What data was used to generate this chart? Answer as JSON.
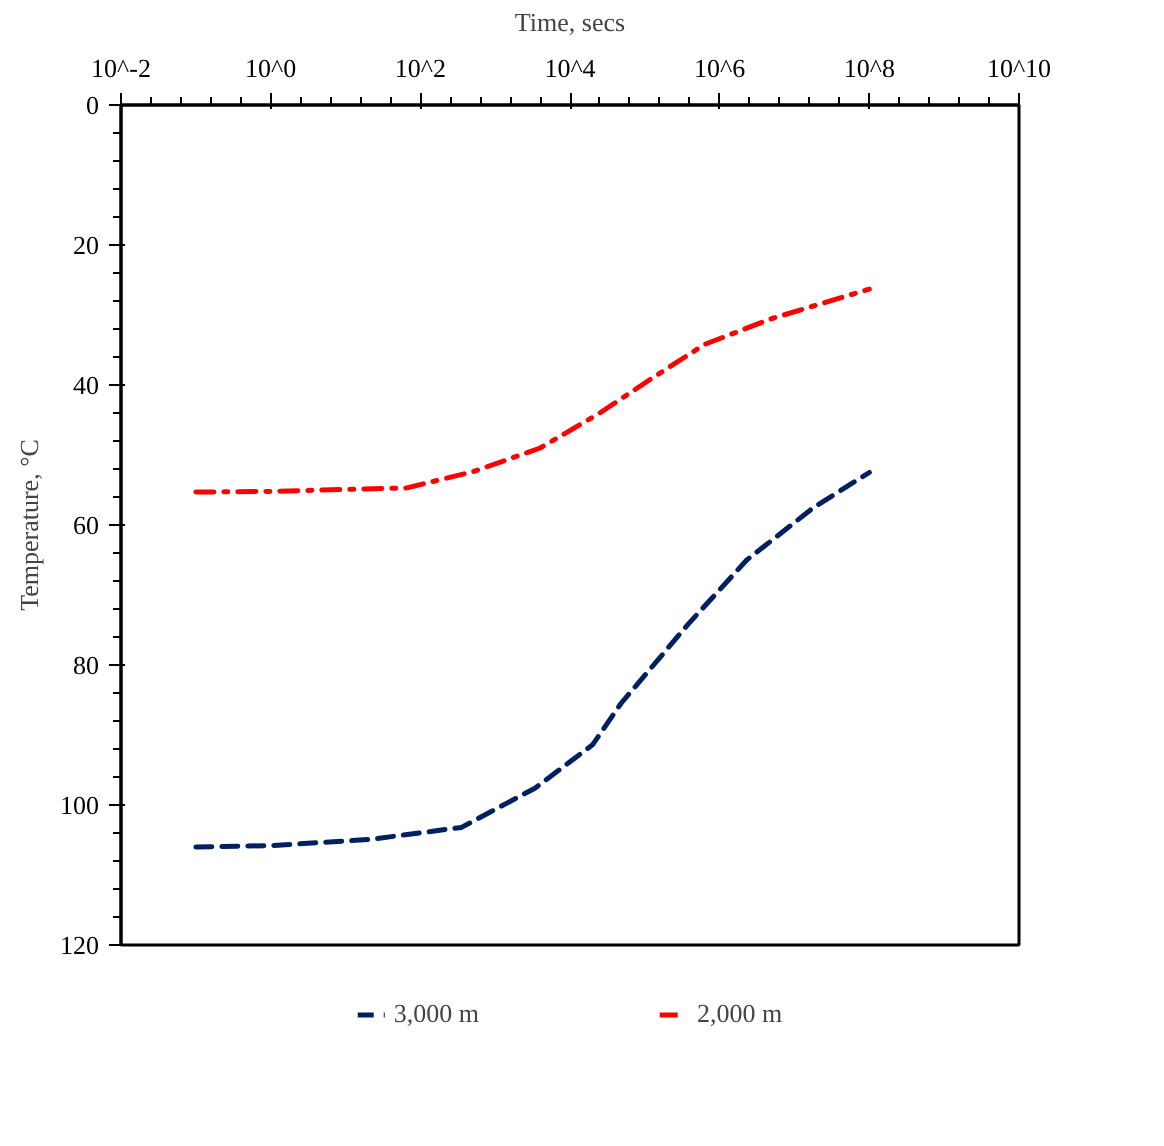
{
  "chart_data": {
    "type": "line",
    "xlabel": "Time, secs",
    "ylabel": "Temperature, °C",
    "log": "x",
    "xlim": [
      0.01,
      10000000000
    ],
    "xticks": [
      {
        "value": 0.01,
        "label": "10^-2"
      },
      {
        "value": 1,
        "label": "10^0"
      },
      {
        "value": 100,
        "label": "10^2"
      },
      {
        "value": 10000,
        "label": "10^4"
      },
      {
        "value": 1000000,
        "label": "10^6"
      },
      {
        "value": 100000000,
        "label": "10^8"
      },
      {
        "value": 10000000000,
        "label": "10^10"
      }
    ],
    "ylim": [
      120,
      0
    ],
    "yticks": [
      0,
      20,
      40,
      60,
      80,
      100,
      120
    ],
    "grid": false,
    "legend": "bottom",
    "marker": "none",
    "series": [
      {
        "name": "3,000 m",
        "color": "#002060",
        "line_style": "dashed",
        "x": [
          0.1,
          1,
          22,
          355,
          3400,
          20000,
          48000,
          370000,
          2300000,
          18000000,
          100000000
        ],
        "values": [
          106,
          105.8,
          104.9,
          103.2,
          97.6,
          91.4,
          85.5,
          74.3,
          65,
          57.5,
          52.5
        ]
      },
      {
        "name": "2,000 m",
        "color": "#ff0000",
        "line_style": "dashdot",
        "x": [
          0.1,
          1,
          66,
          500,
          4000,
          25000,
          126000,
          630000,
          5000000,
          100000000
        ],
        "values": [
          55.3,
          55.2,
          54.7,
          52.4,
          49,
          44,
          39,
          34.2,
          30.5,
          26.3
        ]
      }
    ]
  }
}
